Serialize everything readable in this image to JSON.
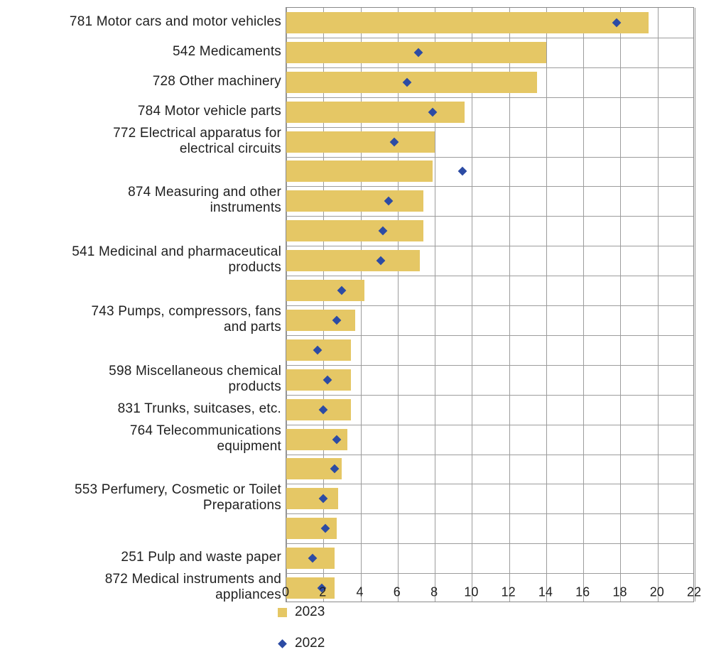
{
  "chart_data": {
    "type": "bar",
    "orientation": "horizontal",
    "title": "",
    "xlabel": "",
    "ylabel": "",
    "xlim": [
      0,
      22
    ],
    "x_ticks": [
      0,
      2,
      4,
      6,
      8,
      10,
      12,
      14,
      16,
      18,
      20,
      22
    ],
    "grid": true,
    "legend_position": "bottom-left",
    "categories": [
      "781 Motor cars and motor vehicles",
      "542 Medicaments",
      "728 Other machinery",
      "784 Motor vehicle parts",
      "772 Electrical apparatus for\nelectrical circuits",
      "",
      "874 Measuring and other\ninstruments",
      "",
      "541 Medicinal and pharmaceutical\nproducts",
      "",
      "743 Pumps, compressors, fans\nand parts",
      "",
      "598 Miscellaneous chemical\nproducts",
      "831 Trunks, suitcases, etc.",
      "764 Telecommunications\nequipment",
      "",
      "553 Perfumery, Cosmetic or Toilet\nPreparations",
      "",
      "251 Pulp and waste paper",
      "872 Medical instruments and\nappliances"
    ],
    "series": [
      {
        "name": "2023",
        "mark": "bar",
        "color": "#e5c765",
        "values": [
          19.5,
          14.0,
          13.5,
          9.6,
          8.0,
          7.9,
          7.4,
          7.4,
          7.2,
          4.2,
          3.7,
          3.5,
          3.5,
          3.5,
          3.3,
          3.0,
          2.8,
          2.7,
          2.6,
          2.6
        ]
      },
      {
        "name": "2022",
        "mark": "diamond",
        "color": "#2c4ba4",
        "values": [
          17.8,
          7.1,
          6.5,
          7.9,
          5.8,
          9.5,
          5.5,
          5.2,
          5.1,
          3.0,
          2.7,
          1.7,
          2.2,
          2.0,
          2.7,
          2.6,
          2.0,
          2.1,
          1.4,
          1.9
        ]
      }
    ]
  },
  "legend": {
    "items": [
      {
        "label": "2023",
        "swatch": "square"
      },
      {
        "label": "2022",
        "swatch": "diamond"
      }
    ]
  },
  "colors": {
    "bar_2023": "#e5c765",
    "marker_2022": "#2c4ba4",
    "gridline": "#9c9c9c",
    "plot_border": "#8a8a8a",
    "text": "#1f1f1f",
    "background": "#ffffff"
  }
}
